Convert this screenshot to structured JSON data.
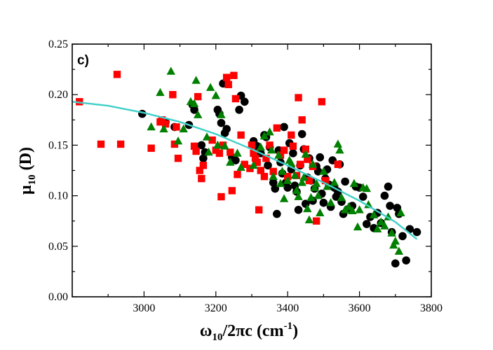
{
  "chart_data": {
    "type": "scatter",
    "panel_label": "c)",
    "xlabel": {
      "main": "ω",
      "sub": "10",
      "rest": "/2πc (cm",
      "sup": "-1",
      "end": ")"
    },
    "ylabel": {
      "main": "μ",
      "sub": "10",
      "rest": " (D)"
    },
    "xlim": [
      2800,
      3800
    ],
    "ylim": [
      0.0,
      0.25
    ],
    "xticks": [
      3000,
      3200,
      3400,
      3600,
      3800
    ],
    "xtick_labels": [
      "3000",
      "3200",
      "3400",
      "3600",
      "3800"
    ],
    "yticks": [
      0.0,
      0.05,
      0.1,
      0.15,
      0.2,
      0.25
    ],
    "ytick_labels": [
      "0.00",
      "0.05",
      "0.10",
      "0.15",
      "0.20",
      "0.25"
    ],
    "grid": false,
    "fit_color": "#40d0c8",
    "fit_line": {
      "x": [
        2800,
        2900,
        3000,
        3100,
        3200,
        3300,
        3400,
        3500,
        3600,
        3700,
        3760
      ],
      "y": [
        0.193,
        0.189,
        0.182,
        0.173,
        0.161,
        0.146,
        0.13,
        0.113,
        0.095,
        0.074,
        0.057
      ]
    },
    "series": [
      {
        "name": "black circles",
        "marker": "circle",
        "color": "#000000",
        "points": [
          [
            2995,
            0.181
          ],
          [
            3060,
            0.173
          ],
          [
            3085,
            0.168
          ],
          [
            3125,
            0.17
          ],
          [
            3135,
            0.19
          ],
          [
            3140,
            0.185
          ],
          [
            3160,
            0.15
          ],
          [
            3165,
            0.137
          ],
          [
            3170,
            0.143
          ],
          [
            3205,
            0.185
          ],
          [
            3210,
            0.181
          ],
          [
            3215,
            0.172
          ],
          [
            3220,
            0.211
          ],
          [
            3225,
            0.162
          ],
          [
            3230,
            0.166
          ],
          [
            3245,
            0.138
          ],
          [
            3255,
            0.135
          ],
          [
            3265,
            0.185
          ],
          [
            3270,
            0.199
          ],
          [
            3280,
            0.193
          ],
          [
            3305,
            0.154
          ],
          [
            3315,
            0.149
          ],
          [
            3325,
            0.142
          ],
          [
            3335,
            0.16
          ],
          [
            3340,
            0.158
          ],
          [
            3345,
            0.13
          ],
          [
            3350,
            0.148
          ],
          [
            3360,
            0.113
          ],
          [
            3365,
            0.107
          ],
          [
            3370,
            0.082
          ],
          [
            3375,
            0.145
          ],
          [
            3380,
            0.133
          ],
          [
            3385,
            0.122
          ],
          [
            3390,
            0.168
          ],
          [
            3395,
            0.113
          ],
          [
            3400,
            0.108
          ],
          [
            3405,
            0.152
          ],
          [
            3410,
            0.126
          ],
          [
            3415,
            0.142
          ],
          [
            3420,
            0.11
          ],
          [
            3425,
            0.104
          ],
          [
            3430,
            0.086
          ],
          [
            3435,
            0.13
          ],
          [
            3440,
            0.161
          ],
          [
            3445,
            0.146
          ],
          [
            3450,
            0.092
          ],
          [
            3455,
            0.118
          ],
          [
            3460,
            0.137
          ],
          [
            3465,
            0.115
          ],
          [
            3470,
            0.095
          ],
          [
            3475,
            0.107
          ],
          [
            3480,
            0.129
          ],
          [
            3485,
            0.124
          ],
          [
            3490,
            0.138
          ],
          [
            3495,
            0.102
          ],
          [
            3500,
            0.093
          ],
          [
            3505,
            0.117
          ],
          [
            3510,
            0.126
          ],
          [
            3515,
            0.111
          ],
          [
            3520,
            0.089
          ],
          [
            3525,
            0.135
          ],
          [
            3530,
            0.108
          ],
          [
            3535,
            0.099
          ],
          [
            3540,
            0.104
          ],
          [
            3545,
            0.131
          ],
          [
            3550,
            0.094
          ],
          [
            3555,
            0.082
          ],
          [
            3560,
            0.114
          ],
          [
            3570,
            0.087
          ],
          [
            3580,
            0.09
          ],
          [
            3590,
            0.109
          ],
          [
            3600,
            0.108
          ],
          [
            3610,
            0.099
          ],
          [
            3620,
            0.072
          ],
          [
            3630,
            0.079
          ],
          [
            3640,
            0.068
          ],
          [
            3650,
            0.083
          ],
          [
            3660,
            0.073
          ],
          [
            3670,
            0.1
          ],
          [
            3680,
            0.109
          ],
          [
            3685,
            0.09
          ],
          [
            3690,
            0.064
          ],
          [
            3700,
            0.033
          ],
          [
            3705,
            0.088
          ],
          [
            3710,
            0.082
          ],
          [
            3720,
            0.06
          ],
          [
            3730,
            0.036
          ],
          [
            3740,
            0.067
          ],
          [
            3760,
            0.064
          ]
        ]
      },
      {
        "name": "red squares",
        "marker": "square",
        "color": "#ff0000",
        "points": [
          [
            2820,
            0.193
          ],
          [
            2880,
            0.151
          ],
          [
            2925,
            0.22
          ],
          [
            2935,
            0.151
          ],
          [
            3020,
            0.147
          ],
          [
            3045,
            0.173
          ],
          [
            3050,
            0.175
          ],
          [
            3060,
            0.171
          ],
          [
            3080,
            0.2
          ],
          [
            3085,
            0.151
          ],
          [
            3090,
            0.168
          ],
          [
            3095,
            0.137
          ],
          [
            3140,
            0.149
          ],
          [
            3145,
            0.144
          ],
          [
            3150,
            0.198
          ],
          [
            3155,
            0.125
          ],
          [
            3160,
            0.117
          ],
          [
            3165,
            0.13
          ],
          [
            3190,
            0.155
          ],
          [
            3200,
            0.145
          ],
          [
            3210,
            0.142
          ],
          [
            3215,
            0.099
          ],
          [
            3220,
            0.15
          ],
          [
            3230,
            0.217
          ],
          [
            3235,
            0.21
          ],
          [
            3240,
            0.143
          ],
          [
            3245,
            0.105
          ],
          [
            3250,
            0.219
          ],
          [
            3255,
            0.196
          ],
          [
            3260,
            0.121
          ],
          [
            3270,
            0.16
          ],
          [
            3280,
            0.131
          ],
          [
            3295,
            0.127
          ],
          [
            3300,
            0.15
          ],
          [
            3305,
            0.142
          ],
          [
            3310,
            0.137
          ],
          [
            3315,
            0.133
          ],
          [
            3320,
            0.086
          ],
          [
            3325,
            0.125
          ],
          [
            3335,
            0.119
          ],
          [
            3340,
            0.137
          ],
          [
            3350,
            0.15
          ],
          [
            3360,
            0.124
          ],
          [
            3370,
            0.167
          ],
          [
            3380,
            0.14
          ],
          [
            3390,
            0.145
          ],
          [
            3400,
            0.119
          ],
          [
            3410,
            0.16
          ],
          [
            3415,
            0.149
          ],
          [
            3425,
            0.12
          ],
          [
            3430,
            0.197
          ],
          [
            3435,
            0.131
          ],
          [
            3440,
            0.175
          ],
          [
            3450,
            0.146
          ],
          [
            3455,
            0.136
          ],
          [
            3460,
            0.115
          ],
          [
            3470,
            0.129
          ],
          [
            3480,
            0.075
          ],
          [
            3495,
            0.193
          ],
          [
            3505,
            0.115
          ],
          [
            3540,
            0.131
          ]
        ]
      },
      {
        "name": "green triangles",
        "marker": "triangle",
        "color": "#008000",
        "points": [
          [
            3020,
            0.168
          ],
          [
            3045,
            0.202
          ],
          [
            3055,
            0.166
          ],
          [
            3075,
            0.223
          ],
          [
            3095,
            0.154
          ],
          [
            3110,
            0.166
          ],
          [
            3130,
            0.193
          ],
          [
            3140,
            0.191
          ],
          [
            3145,
            0.214
          ],
          [
            3150,
            0.18
          ],
          [
            3175,
            0.158
          ],
          [
            3180,
            0.143
          ],
          [
            3185,
            0.207
          ],
          [
            3200,
            0.199
          ],
          [
            3205,
            0.15
          ],
          [
            3215,
            0.18
          ],
          [
            3225,
            0.149
          ],
          [
            3240,
            0.133
          ],
          [
            3260,
            0.142
          ],
          [
            3270,
            0.128
          ],
          [
            3305,
            0.13
          ],
          [
            3325,
            0.148
          ],
          [
            3335,
            0.159
          ],
          [
            3350,
            0.163
          ],
          [
            3355,
            0.145
          ],
          [
            3360,
            0.119
          ],
          [
            3375,
            0.14
          ],
          [
            3380,
            0.112
          ],
          [
            3385,
            0.124
          ],
          [
            3390,
            0.097
          ],
          [
            3400,
            0.115
          ],
          [
            3405,
            0.135
          ],
          [
            3410,
            0.132
          ],
          [
            3420,
            0.12
          ],
          [
            3425,
            0.105
          ],
          [
            3430,
            0.099
          ],
          [
            3440,
            0.113
          ],
          [
            3445,
            0.118
          ],
          [
            3450,
            0.141
          ],
          [
            3455,
            0.087
          ],
          [
            3460,
            0.076
          ],
          [
            3465,
            0.098
          ],
          [
            3470,
            0.131
          ],
          [
            3475,
            0.108
          ],
          [
            3480,
            0.112
          ],
          [
            3485,
            0.1
          ],
          [
            3490,
            0.083
          ],
          [
            3500,
            0.124
          ],
          [
            3510,
            0.109
          ],
          [
            3520,
            0.093
          ],
          [
            3530,
            0.113
          ],
          [
            3540,
            0.151
          ],
          [
            3545,
            0.145
          ],
          [
            3550,
            0.098
          ],
          [
            3560,
            0.086
          ],
          [
            3570,
            0.089
          ],
          [
            3580,
            0.085
          ],
          [
            3585,
            0.112
          ],
          [
            3595,
            0.069
          ],
          [
            3600,
            0.086
          ],
          [
            3610,
            0.108
          ],
          [
            3620,
            0.107
          ],
          [
            3625,
            0.091
          ],
          [
            3640,
            0.081
          ],
          [
            3650,
            0.067
          ],
          [
            3660,
            0.074
          ],
          [
            3670,
            0.07
          ],
          [
            3680,
            0.079
          ],
          [
            3690,
            0.063
          ],
          [
            3695,
            0.051
          ],
          [
            3700,
            0.055
          ],
          [
            3710,
            0.045
          ],
          [
            3715,
            0.083
          ]
        ]
      }
    ]
  }
}
